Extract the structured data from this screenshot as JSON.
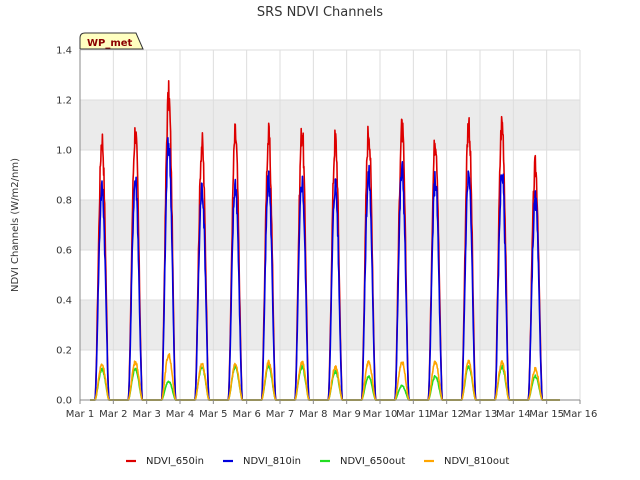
{
  "chart_data": {
    "type": "line",
    "title": "SRS NDVI Channels",
    "ylabel": "NDVI Channels (W/m2/nm)",
    "xlabel": "",
    "badge": "WP_met",
    "ylim": [
      0,
      1.4
    ],
    "xlim": [
      1,
      16
    ],
    "yticks": [
      "0.0",
      "0.2",
      "0.4",
      "0.6",
      "0.8",
      "1.0",
      "1.2",
      "1.4"
    ],
    "xticks": [
      "Mar 1",
      "Mar 2",
      "Mar 3",
      "Mar 4",
      "Mar 5",
      "Mar 6",
      "Mar 7",
      "Mar 8",
      "Mar 9",
      "Mar 10",
      "Mar 11",
      "Mar 12",
      "Mar 13",
      "Mar 14",
      "Mar 15",
      "Mar 16"
    ],
    "grid": true,
    "legend_position": "bottom",
    "colors": {
      "plot_band": "#ebebeb",
      "grid": "#dddddd"
    },
    "day_start": 1.4,
    "day_end": 15.4,
    "series": [
      {
        "name": "NDVI_650in",
        "color": "#dd0000",
        "daily_peaks": [
          1.1,
          1.13,
          1.28,
          1.08,
          1.12,
          1.11,
          1.13,
          1.1,
          1.14,
          1.14,
          1.11,
          1.17,
          1.17,
          0.98
        ],
        "day_start": [
          1.1,
          1.0,
          0.6,
          1.05,
          1.12,
          1.11,
          1.13,
          0.95,
          0.5,
          0.4,
          0.9,
          1.17,
          1.17,
          0.85
        ]
      },
      {
        "name": "NDVI_810in",
        "color": "#0000dd",
        "daily_peaks": [
          0.89,
          0.93,
          1.08,
          0.89,
          0.91,
          0.92,
          0.92,
          0.91,
          0.95,
          0.97,
          0.93,
          0.95,
          0.96,
          0.84
        ]
      },
      {
        "name": "NDVI_650out",
        "color": "#22dd22",
        "daily_peaks": [
          0.13,
          0.13,
          0.08,
          0.14,
          0.14,
          0.14,
          0.14,
          0.12,
          0.1,
          0.06,
          0.1,
          0.14,
          0.14,
          0.1
        ]
      },
      {
        "name": "NDVI_810out",
        "color": "#ffa500",
        "daily_peaks": [
          0.15,
          0.16,
          0.19,
          0.15,
          0.15,
          0.16,
          0.16,
          0.14,
          0.16,
          0.16,
          0.16,
          0.16,
          0.16,
          0.13
        ]
      }
    ]
  }
}
